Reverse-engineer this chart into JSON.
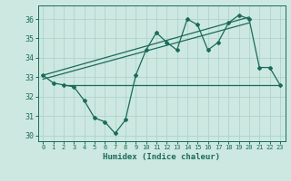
{
  "title": "",
  "xlabel": "Humidex (Indice chaleur)",
  "ylabel": "",
  "bg_color": "#cce8e0",
  "line_color": "#1a6b5a",
  "grid_color": "#aacfc8",
  "xlim": [
    -0.5,
    23.5
  ],
  "ylim": [
    29.7,
    36.7
  ],
  "yticks": [
    30,
    31,
    32,
    33,
    34,
    35,
    36
  ],
  "xticks": [
    0,
    1,
    2,
    3,
    4,
    5,
    6,
    7,
    8,
    9,
    10,
    11,
    12,
    13,
    14,
    15,
    16,
    17,
    18,
    19,
    20,
    21,
    22,
    23
  ],
  "series1_x": [
    0,
    1,
    2,
    3,
    4,
    5,
    6,
    7,
    8,
    9,
    10,
    11,
    12,
    13,
    14,
    15,
    16,
    17,
    18,
    19,
    20,
    21,
    22,
    23
  ],
  "series1_y": [
    33.1,
    32.7,
    32.6,
    32.5,
    31.8,
    30.9,
    30.7,
    30.1,
    30.8,
    33.1,
    34.4,
    35.3,
    34.8,
    34.4,
    36.0,
    35.7,
    34.4,
    34.8,
    35.8,
    36.2,
    36.0,
    33.5,
    33.5,
    32.6
  ],
  "series2_x": [
    2,
    23
  ],
  "series2_y": [
    32.6,
    32.6
  ],
  "series3_x": [
    0,
    20
  ],
  "series3_y": [
    33.1,
    36.1
  ],
  "series4_x": [
    0,
    20
  ],
  "series4_y": [
    32.9,
    35.8
  ]
}
